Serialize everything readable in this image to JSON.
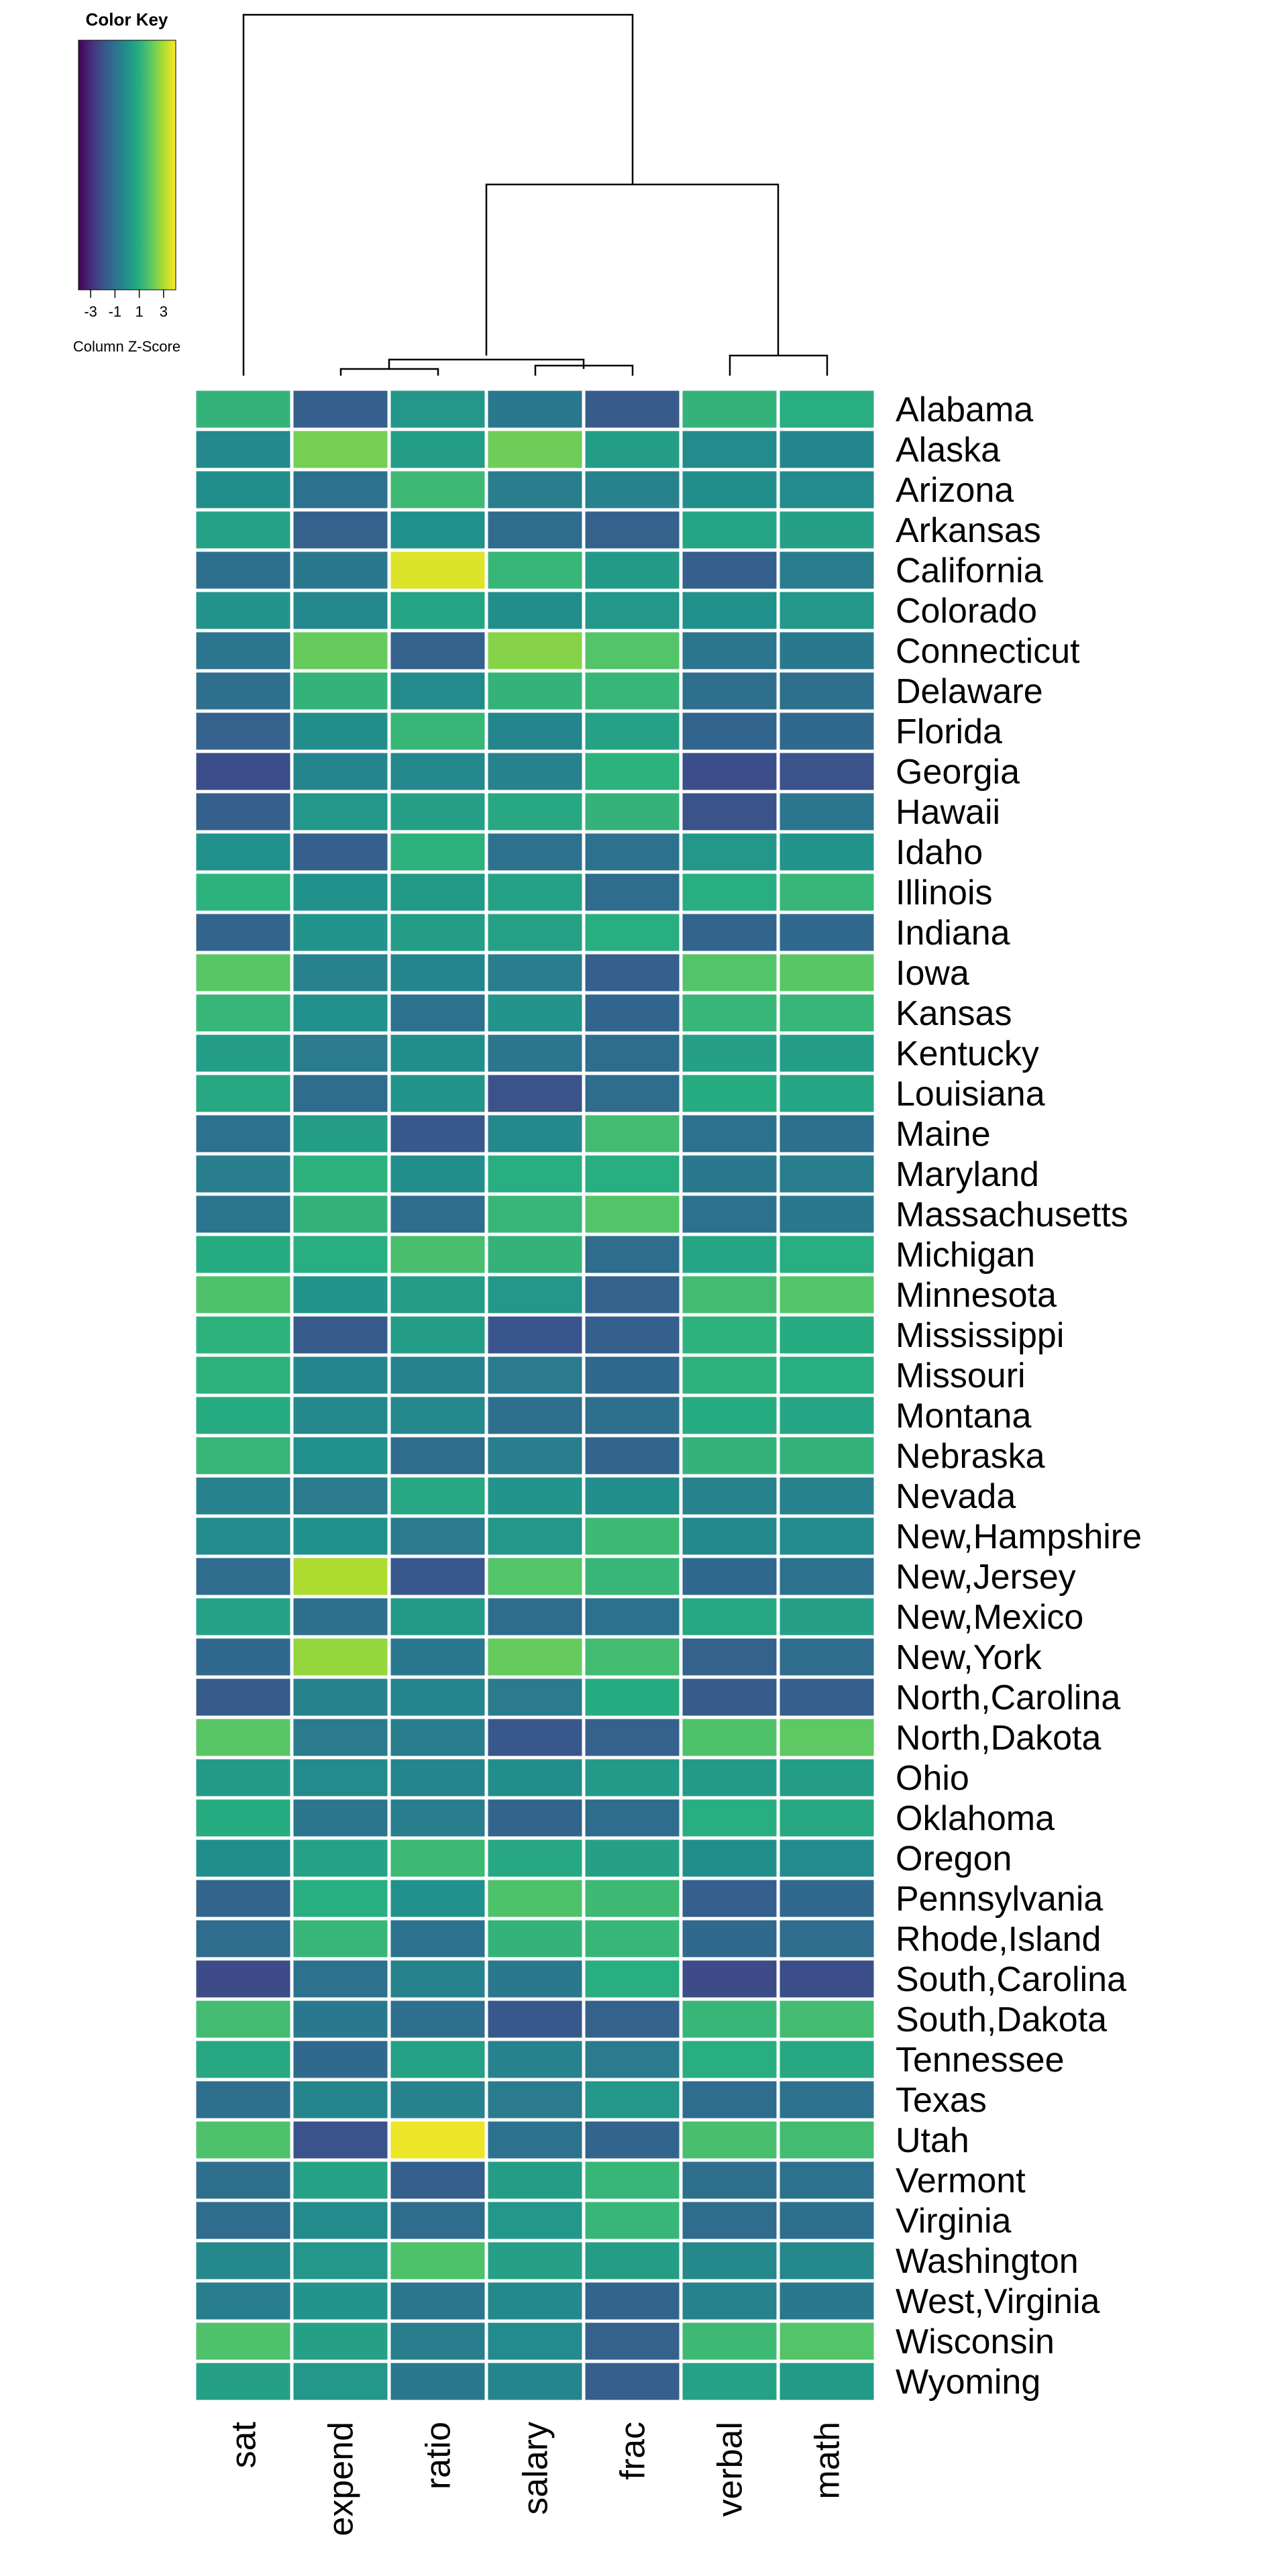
{
  "chart_data": {
    "type": "heatmap",
    "columns": [
      "sat",
      "expend",
      "ratio",
      "salary",
      "frac",
      "verbal",
      "math"
    ],
    "rows": [
      "Alabama",
      "Alaska",
      "Arizona",
      "Arkansas",
      "California",
      "Colorado",
      "Connecticut",
      "Delaware",
      "Florida",
      "Georgia",
      "Hawaii",
      "Idaho",
      "Illinois",
      "Indiana",
      "Iowa",
      "Kansas",
      "Kentucky",
      "Louisiana",
      "Maine",
      "Maryland",
      "Massachusetts",
      "Michigan",
      "Minnesota",
      "Mississippi",
      "Missouri",
      "Montana",
      "Nebraska",
      "Nevada",
      "New,Hampshire",
      "New,Jersey",
      "New,Mexico",
      "New,York",
      "North,Carolina",
      "North,Dakota",
      "Ohio",
      "Oklahoma",
      "Oregon",
      "Pennsylvania",
      "Rhode,Island",
      "South,Carolina",
      "South,Dakota",
      "Tennessee",
      "Texas",
      "Utah",
      "Vermont",
      "Virginia",
      "Washington",
      "West,Virginia",
      "Wisconsin",
      "Wyoming"
    ],
    "values": [
      [
        1.2,
        -1.6,
        0.2,
        -0.8,
        -1.7,
        1.2,
        1.0
      ],
      [
        -0.3,
        2.3,
        0.4,
        2.2,
        0.4,
        -0.2,
        -0.4
      ],
      [
        -0.1,
        -1.0,
        1.4,
        -0.6,
        -0.5,
        -0.1,
        -0.2
      ],
      [
        0.6,
        -1.5,
        0.0,
        -1.2,
        -1.5,
        0.7,
        0.5
      ],
      [
        -1.1,
        -0.8,
        3.6,
        1.3,
        0.3,
        -1.6,
        -0.6
      ],
      [
        0.1,
        -0.3,
        0.7,
        -0.1,
        0.2,
        0.0,
        0.2
      ],
      [
        -0.9,
        2.1,
        -1.5,
        2.5,
        1.8,
        -0.9,
        -0.8
      ],
      [
        -1.1,
        1.2,
        -0.2,
        1.2,
        1.3,
        -1.1,
        -1.1
      ],
      [
        -1.5,
        -0.1,
        1.3,
        -0.4,
        0.6,
        -1.4,
        -1.3
      ],
      [
        -2.1,
        -0.4,
        -0.3,
        -0.5,
        1.1,
        -2.1,
        -2.0
      ],
      [
        -1.6,
        0.2,
        0.5,
        0.8,
        1.2,
        -2.0,
        -0.9
      ],
      [
        0.0,
        -1.6,
        1.1,
        -1.0,
        -1.0,
        0.2,
        0.1
      ],
      [
        1.1,
        0.0,
        0.3,
        0.6,
        -1.2,
        1.0,
        1.3
      ],
      [
        -1.4,
        0.1,
        0.4,
        0.6,
        1.0,
        -1.4,
        -1.3
      ],
      [
        1.9,
        -0.5,
        -0.4,
        -0.6,
        -1.6,
        1.8,
        1.9
      ],
      [
        1.3,
        0.0,
        -1.0,
        0.1,
        -1.4,
        1.3,
        1.3
      ],
      [
        0.4,
        -0.7,
        -0.1,
        -0.9,
        -1.2,
        0.5,
        0.4
      ],
      [
        0.8,
        -1.2,
        0.1,
        -2.0,
        -1.2,
        0.9,
        0.7
      ],
      [
        -1.0,
        0.4,
        -1.8,
        -0.3,
        1.5,
        -1.0,
        -1.1
      ],
      [
        -0.6,
        1.1,
        -0.1,
        1.0,
        1.0,
        -0.8,
        -0.6
      ],
      [
        -0.9,
        1.2,
        -1.2,
        1.3,
        1.8,
        -1.0,
        -0.8
      ],
      [
        0.9,
        1.0,
        1.6,
        1.2,
        -1.2,
        0.7,
        1.0
      ],
      [
        1.7,
        0.1,
        0.4,
        0.2,
        -1.5,
        1.5,
        1.8
      ],
      [
        1.1,
        -1.7,
        0.4,
        -1.9,
        -1.6,
        1.1,
        0.9
      ],
      [
        1.1,
        -0.4,
        -0.5,
        -0.7,
        -1.3,
        1.1,
        1.0
      ],
      [
        0.9,
        -0.3,
        -0.3,
        -1.1,
        -1.1,
        0.9,
        0.7
      ],
      [
        1.3,
        0.0,
        -1.2,
        -0.6,
        -1.4,
        1.2,
        1.2
      ],
      [
        -0.5,
        -0.7,
        0.8,
        0.1,
        -0.1,
        -0.5,
        -0.5
      ],
      [
        -0.2,
        0.0,
        -0.7,
        0.2,
        1.4,
        -0.3,
        -0.2
      ],
      [
        -1.2,
        3.0,
        -1.8,
        1.8,
        1.3,
        -1.3,
        -1.0
      ],
      [
        0.6,
        -1.1,
        0.3,
        -1.2,
        -1.0,
        0.8,
        0.5
      ],
      [
        -1.3,
        2.7,
        -0.8,
        2.1,
        1.5,
        -1.5,
        -1.2
      ],
      [
        -1.7,
        -0.5,
        -0.4,
        -0.7,
        0.9,
        -1.7,
        -1.6
      ],
      [
        1.9,
        -0.7,
        -0.6,
        -1.8,
        -1.5,
        1.7,
        2.0
      ],
      [
        0.3,
        -0.2,
        -0.4,
        -0.1,
        0.3,
        0.3,
        0.4
      ],
      [
        0.9,
        -0.9,
        -0.6,
        -1.4,
        -1.2,
        1.0,
        0.8
      ],
      [
        -0.1,
        0.6,
        1.4,
        0.8,
        0.5,
        -0.1,
        -0.2
      ],
      [
        -1.4,
        1.0,
        0.0,
        1.7,
        1.4,
        -1.6,
        -1.3
      ],
      [
        -1.2,
        1.3,
        -1.0,
        1.2,
        1.3,
        -1.3,
        -1.2
      ],
      [
        -2.2,
        -1.0,
        -0.5,
        -0.8,
        1.0,
        -2.2,
        -2.1
      ],
      [
        1.5,
        -0.8,
        -1.1,
        -1.8,
        -1.5,
        1.3,
        1.5
      ],
      [
        0.8,
        -1.3,
        0.6,
        -0.5,
        -0.7,
        1.0,
        0.8
      ],
      [
        -1.1,
        -0.4,
        -0.5,
        -0.7,
        0.2,
        -1.2,
        -1.0
      ],
      [
        1.7,
        -2.0,
        3.8,
        -1.0,
        -1.4,
        1.6,
        1.5
      ],
      [
        -1.1,
        0.6,
        -1.6,
        0.4,
        1.3,
        -1.1,
        -1.0
      ],
      [
        -1.2,
        -0.2,
        -1.2,
        0.2,
        1.3,
        -1.2,
        -1.1
      ],
      [
        -0.3,
        0.2,
        1.7,
        0.5,
        0.4,
        -0.3,
        -0.3
      ],
      [
        -0.6,
        0.1,
        -0.9,
        -0.3,
        -1.4,
        -0.5,
        -0.8
      ],
      [
        1.7,
        0.5,
        -0.6,
        -0.2,
        -1.5,
        1.4,
        1.8
      ],
      [
        0.5,
        0.2,
        -0.8,
        -0.4,
        -1.6,
        0.6,
        0.3
      ]
    ],
    "color_scale": "viridis",
    "color_key": {
      "title": "Color Key",
      "label": "Column Z-Score",
      "ticks": [
        "-3",
        "-1",
        "1",
        "3"
      ],
      "range": [
        -4,
        4
      ]
    },
    "column_dendrogram": true,
    "legend_position": "top-left",
    "grid": false
  }
}
